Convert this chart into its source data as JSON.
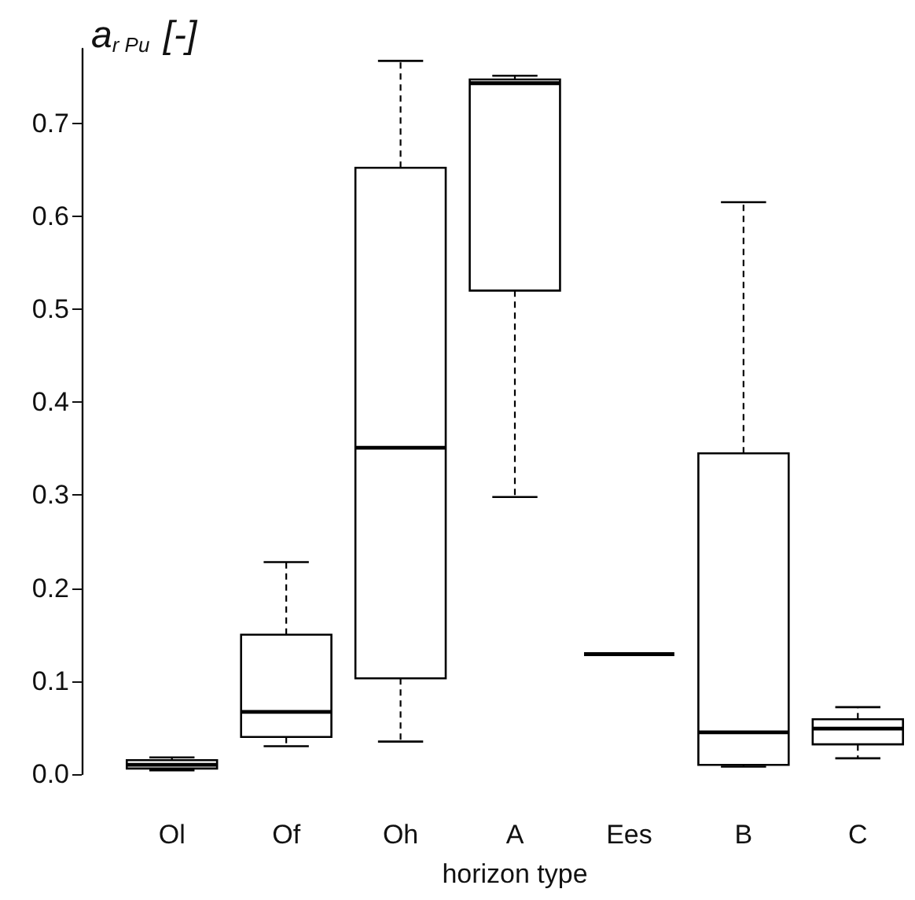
{
  "chart_data": {
    "type": "box",
    "xlabel": "horizon type",
    "ylabel": "a$_{r Pu}$ [-]",
    "categories": [
      "Ol",
      "Of",
      "Oh",
      "A",
      "Ees",
      "B",
      "C"
    ],
    "boxes": [
      {
        "low": 0.004,
        "q1": 0.006,
        "median": 0.01,
        "q3": 0.015,
        "high": 0.018
      },
      {
        "low": 0.03,
        "q1": 0.04,
        "median": 0.067,
        "q3": 0.15,
        "high": 0.228
      },
      {
        "low": 0.035,
        "q1": 0.103,
        "median": 0.351,
        "q3": 0.652,
        "high": 0.767
      },
      {
        "low": 0.298,
        "q1": 0.52,
        "median": 0.743,
        "q3": 0.747,
        "high": 0.751
      },
      {
        "low": 0.129,
        "q1": 0.129,
        "median": 0.129,
        "q3": 0.129,
        "high": 0.129
      },
      {
        "low": 0.008,
        "q1": 0.01,
        "median": 0.045,
        "q3": 0.345,
        "high": 0.615
      },
      {
        "low": 0.017,
        "q1": 0.032,
        "median": 0.049,
        "q3": 0.059,
        "high": 0.072
      }
    ],
    "color": "#000000",
    "line_style": "dashed",
    "ylim": [
      0,
      0.78
    ],
    "yticks": [
      {
        "value": 0,
        "label": "0.0"
      },
      0.1,
      0.2,
      0.3,
      0.4,
      0.5,
      0.6,
      0.7
    ],
    "grid": false
  }
}
